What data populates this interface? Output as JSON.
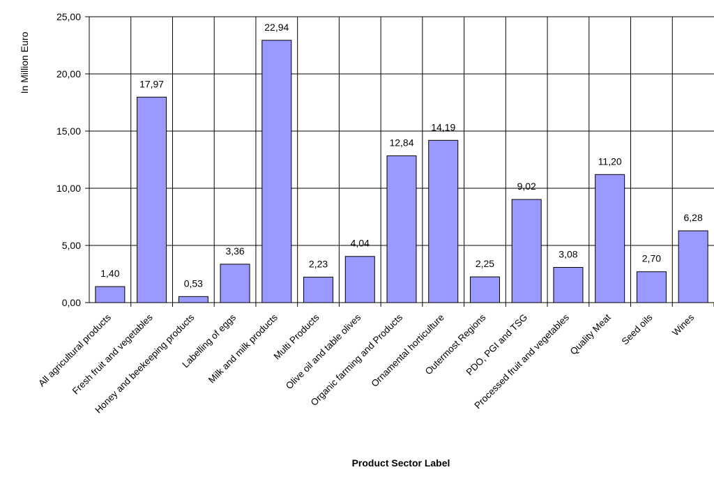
{
  "chart_data": {
    "type": "bar",
    "title": "",
    "xlabel": "Product Sector Label",
    "ylabel": "In Million Euro",
    "ylim": [
      0,
      25
    ],
    "yticks": [
      0,
      5,
      10,
      15,
      20,
      25
    ],
    "ytick_labels": [
      "0,00",
      "5,00",
      "10,00",
      "15,00",
      "20,00",
      "25,00"
    ],
    "grid": true,
    "legend": "none",
    "bar_color": "#9999ff",
    "categories": [
      "All agricultural products",
      "Fresh fruit and vegetables",
      "Honey and beekeeping products",
      "Labelling of eggs",
      "Milk and milk products",
      "Multi Products",
      "Olive oil and table olives",
      "Organic farming and Products",
      "Ornamental horticulture",
      "Outermost Regions",
      "PDO, PGI and TSG",
      "Processed fruit and vegetables",
      "Quality Meat",
      "Seed oils",
      "Wines"
    ],
    "values": [
      1.4,
      17.97,
      0.53,
      3.36,
      22.94,
      2.23,
      4.04,
      12.84,
      14.19,
      2.25,
      9.02,
      3.08,
      11.2,
      2.7,
      6.28
    ],
    "data_labels": [
      "1,40",
      "17,97",
      "0,53",
      "3,36",
      "22,94",
      "2,23",
      "4,04",
      "12,84",
      "14,19",
      "2,25",
      "9,02",
      "3,08",
      "11,20",
      "2,70",
      "6,28"
    ]
  }
}
